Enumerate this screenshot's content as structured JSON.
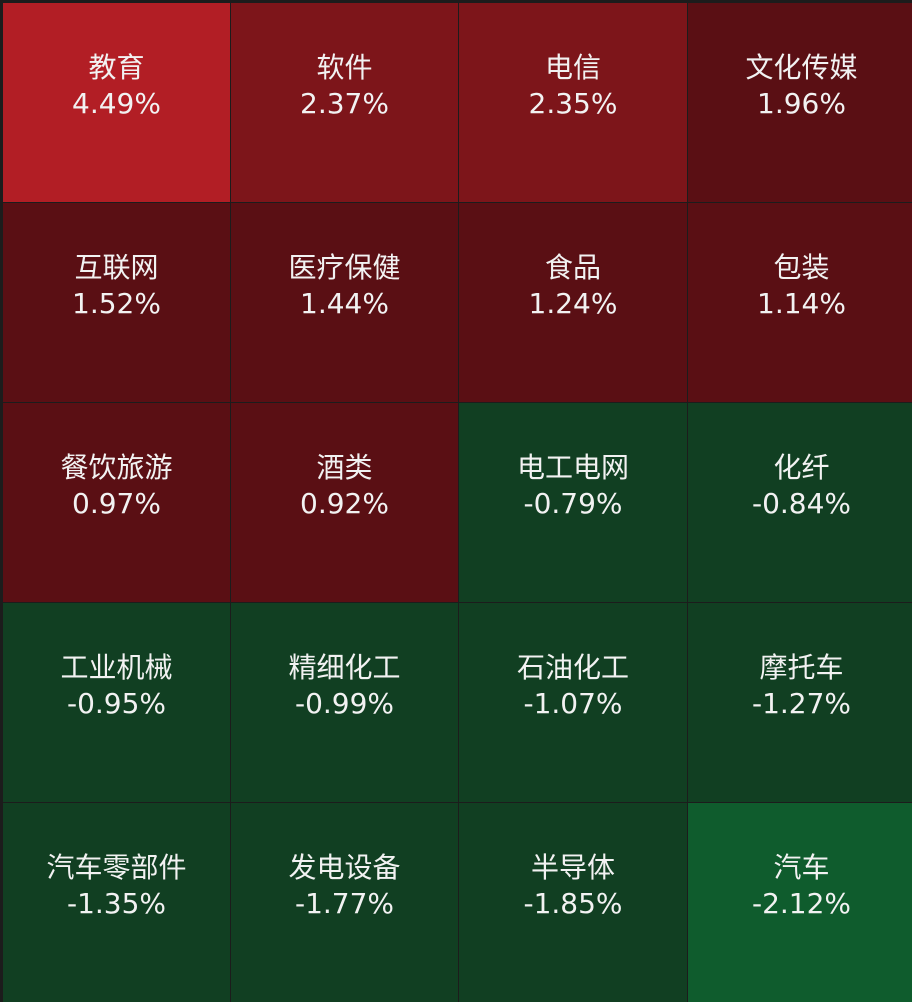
{
  "colors": {
    "background": "#1c1c1c",
    "text": "#f2f2f2"
  },
  "tiles": [
    {
      "name": "教育",
      "change": "4.49%",
      "color": "#b21e25"
    },
    {
      "name": "软件",
      "change": "2.37%",
      "color": "#7d151a"
    },
    {
      "name": "电信",
      "change": "2.35%",
      "color": "#7d151a"
    },
    {
      "name": "文化传媒",
      "change": "1.96%",
      "color": "#5a0f14"
    },
    {
      "name": "互联网",
      "change": "1.52%",
      "color": "#5a0f14"
    },
    {
      "name": "医疗保健",
      "change": "1.44%",
      "color": "#5a0f14"
    },
    {
      "name": "食品",
      "change": "1.24%",
      "color": "#5a0f14"
    },
    {
      "name": "包装",
      "change": "1.14%",
      "color": "#5a0f14"
    },
    {
      "name": "餐饮旅游",
      "change": "0.97%",
      "color": "#5a0f14"
    },
    {
      "name": "酒类",
      "change": "0.92%",
      "color": "#5a0f14"
    },
    {
      "name": "电工电网",
      "change": "-0.79%",
      "color": "#113f22"
    },
    {
      "name": "化纤",
      "change": "-0.84%",
      "color": "#113f22"
    },
    {
      "name": "工业机械",
      "change": "-0.95%",
      "color": "#113f22"
    },
    {
      "name": "精细化工",
      "change": "-0.99%",
      "color": "#113f22"
    },
    {
      "name": "石油化工",
      "change": "-1.07%",
      "color": "#113f22"
    },
    {
      "name": "摩托车",
      "change": "-1.27%",
      "color": "#113f22"
    },
    {
      "name": "汽车零部件",
      "change": "-1.35%",
      "color": "#113f22"
    },
    {
      "name": "发电设备",
      "change": "-1.77%",
      "color": "#113f22"
    },
    {
      "name": "半导体",
      "change": "-1.85%",
      "color": "#113f22"
    },
    {
      "name": "汽车",
      "change": "-2.12%",
      "color": "#0f5c2d"
    }
  ]
}
